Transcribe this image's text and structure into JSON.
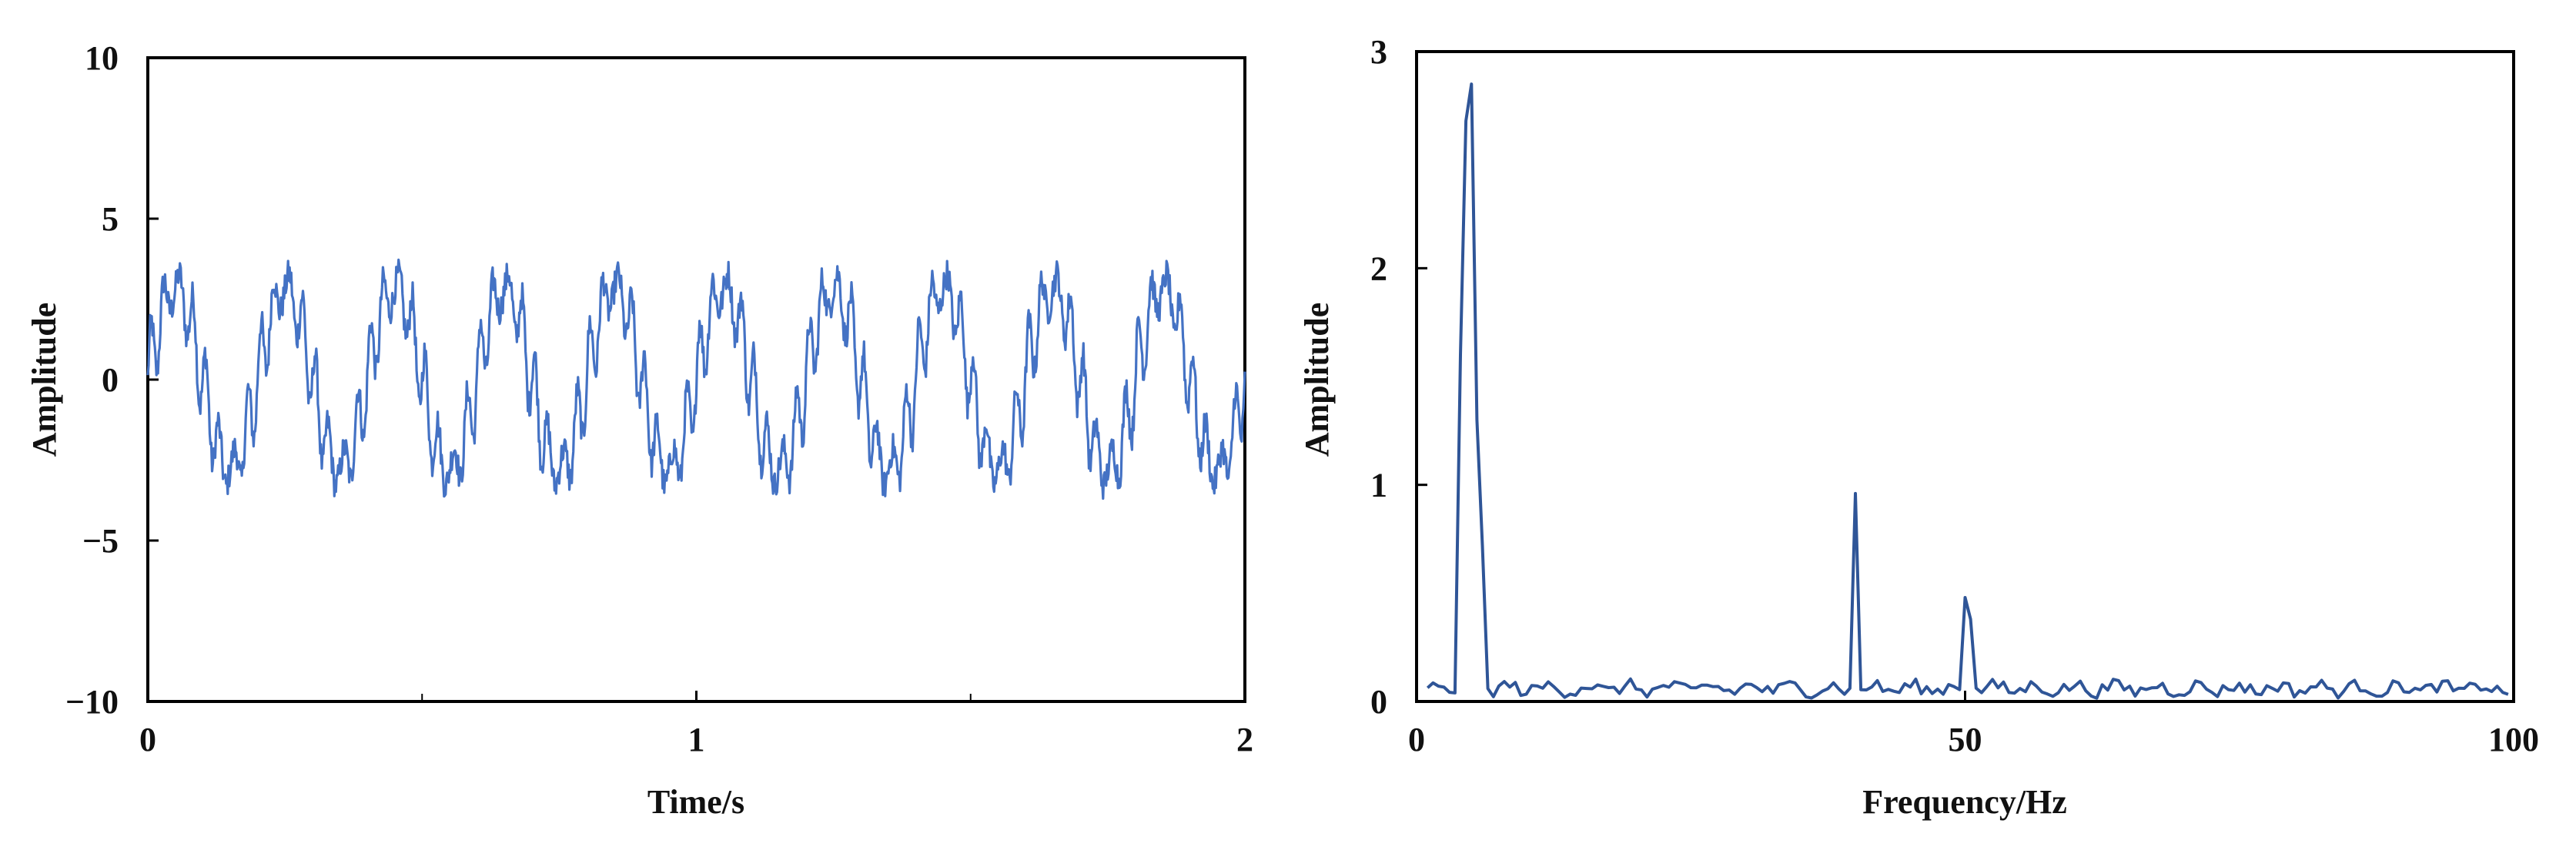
{
  "colors": {
    "series": "#4472c4",
    "axis": "#000000",
    "background": "#ffffff"
  },
  "chart_data": [
    {
      "type": "line",
      "title": "",
      "xlabel": "Time/s",
      "ylabel": "Amplitude",
      "xlim": [
        0,
        2
      ],
      "ylim": [
        -10,
        10
      ],
      "x_ticks": [
        0,
        1,
        2
      ],
      "x_minor_ticks": [
        0.5,
        1.5
      ],
      "y_ticks": [
        -10,
        -5,
        0,
        5,
        10
      ],
      "x_tick_labels": [
        "0",
        "1",
        "2"
      ],
      "y_tick_labels": [
        "−10",
        "−5",
        "0",
        "5",
        "10"
      ],
      "grid": false,
      "legend": "none",
      "series": [
        {
          "color": "#4472c4",
          "description_components": [
            {
              "kind": "sine",
              "frequency_hz": 5,
              "amplitude": 2.8
            },
            {
              "kind": "sine",
              "frequency_hz": 40,
              "amplitude": 0.9
            },
            {
              "kind": "sine",
              "frequency_hz": 50,
              "amplitude": 0.4
            }
          ]
        }
      ]
    },
    {
      "type": "line",
      "title": "",
      "xlabel": "Frequency/Hz",
      "ylabel": "Amplitude",
      "xlim": [
        0,
        100
      ],
      "ylim": [
        0,
        3
      ],
      "x_ticks": [
        0,
        50,
        100
      ],
      "y_ticks": [
        0,
        1,
        2,
        3
      ],
      "x_tick_labels": [
        "0",
        "50",
        "100"
      ],
      "y_tick_labels": [
        "0",
        "1",
        "2",
        "3"
      ],
      "grid": false,
      "legend": "none",
      "series": [
        {
          "color": "#2f5597",
          "peaks": [
            {
              "x": 3.8,
              "y": 1.6
            },
            {
              "x": 4.5,
              "y": 2.68
            },
            {
              "x": 5.0,
              "y": 2.85
            },
            {
              "x": 5.5,
              "y": 1.3
            },
            {
              "x": 6.0,
              "y": 0.72
            },
            {
              "x": 40.0,
              "y": 0.96
            },
            {
              "x": 50.0,
              "y": 0.48
            },
            {
              "x": 50.5,
              "y": 0.38
            }
          ],
          "baseline_level": 0.06
        }
      ]
    }
  ]
}
